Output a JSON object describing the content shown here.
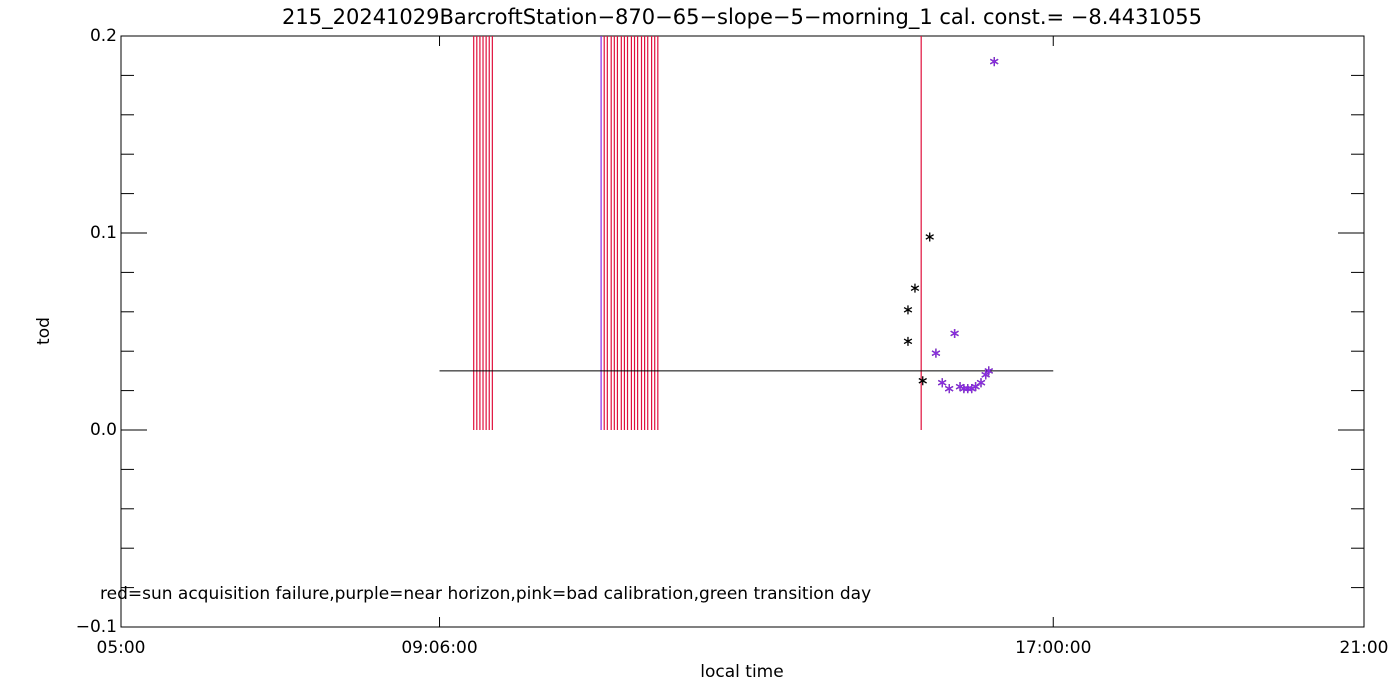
{
  "chart_data": {
    "type": "scatter",
    "title": "215_20241029BarcroftStation−870−65−slope−5−morning_1 cal. const.= −8.4431055",
    "x_label": "local time",
    "y_label": "tod",
    "annotation": "red=sun acquisition failure,purple=near horizon,pink=bad calibration,green transition day",
    "xlim": [
      5,
      21
    ],
    "xticks": [
      {
        "value": 5,
        "label": "05:00"
      },
      {
        "value": 9.1,
        "label": "09:06:00"
      },
      {
        "value": 17,
        "label": "17:00:00"
      },
      {
        "value": 21,
        "label": "21:00"
      }
    ],
    "ylim": [
      -0.1,
      0.2
    ],
    "yticks": [
      {
        "value": -0.1,
        "label": "−0.1"
      },
      {
        "value": 0,
        "label": "0.0"
      },
      {
        "value": 0.1,
        "label": "0.1"
      },
      {
        "value": 0.2,
        "label": "0.2"
      }
    ],
    "yminor_ticks": [
      -0.08,
      -0.06,
      -0.04,
      -0.02,
      0.02,
      0.04,
      0.06,
      0.08,
      0.12,
      0.14,
      0.16,
      0.18
    ],
    "marker": "asterisk",
    "series": [
      {
        "color": "#000000",
        "x": [
          15.13,
          15.13,
          15.22,
          15.41,
          15.32,
          15.49,
          15.57,
          15.66,
          15.73,
          15.8,
          15.85,
          15.9,
          15.95,
          16.0,
          16.07,
          16.13,
          16.17,
          16.24
        ],
        "values": [
          0.061,
          0.045,
          0.072,
          0.098,
          0.025,
          0.039,
          0.024,
          0.021,
          0.049,
          0.022,
          0.021,
          0.021,
          0.021,
          0.022,
          0.024,
          0.028,
          0.03,
          0.187
        ]
      },
      {
        "color": "#8a2be2",
        "x": [
          15.49,
          15.57,
          15.66,
          15.73,
          15.8,
          15.85,
          15.9,
          15.95,
          16.0,
          16.07,
          16.13,
          16.17,
          16.24
        ],
        "values": [
          0.039,
          0.024,
          0.021,
          0.049,
          0.022,
          0.021,
          0.021,
          0.021,
          0.022,
          0.024,
          0.028,
          0.03,
          0.187
        ]
      }
    ],
    "flag_bars": [
      {
        "color": "#e0103c",
        "x": [
          9.54,
          9.58,
          9.62,
          9.66,
          9.7,
          9.74,
          9.78,
          11.22,
          11.26,
          11.31,
          11.35,
          11.39,
          11.44,
          11.48,
          11.52,
          11.57,
          11.61,
          11.65,
          11.7,
          11.74,
          11.78,
          11.83,
          11.87,
          11.91,
          15.3
        ],
        "values": [
          0.2,
          0.2,
          0.2,
          0.2,
          0.2,
          0.2,
          0.2,
          0.2,
          0.2,
          0.2,
          0.2,
          0.2,
          0.2,
          0.2,
          0.2,
          0.2,
          0.2,
          0.2,
          0.2,
          0.2,
          0.2,
          0.2,
          0.2,
          0.2,
          0.2
        ]
      },
      {
        "color": "#8a2be2",
        "x": [
          11.18
        ],
        "values": [
          0.2
        ]
      }
    ],
    "hline": {
      "value": 0.03,
      "x": [
        9.1,
        17
      ],
      "color": "#000000"
    }
  }
}
